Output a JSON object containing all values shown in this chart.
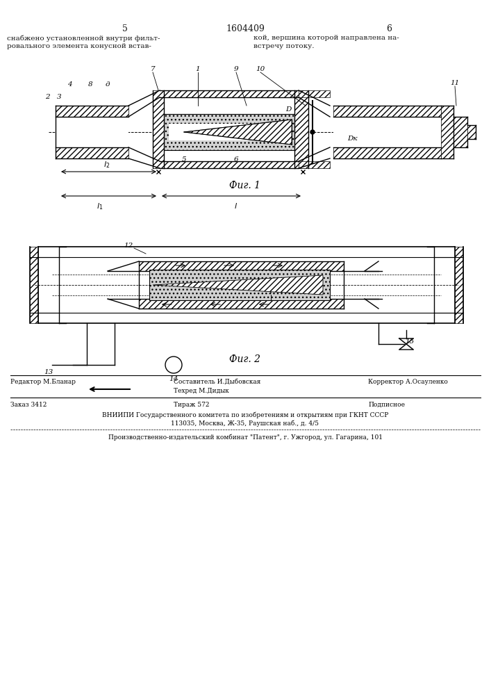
{
  "page_number_left": "5",
  "patent_number": "1604409",
  "page_number_right": "6",
  "header_text_left": "снабжено установленной внутри фильт-\nровального элемента конусной встав-",
  "header_text_right": "кой, вершина которой направлена на-\nвстречу потоку.",
  "fig1_caption": "Фиг. 1",
  "fig2_caption": "Фиг. 2",
  "footer_editor": "Редактор М.Бланар",
  "footer_compiler": "Составитель И.Дыбовская",
  "footer_corrector": "Корректор А.Осауленко",
  "footer_techred": "Техред М.Дидык",
  "footer_order": "Заказ 3412",
  "footer_circulation": "Тираж 572",
  "footer_subscription": "Подписное",
  "footer_vniiipi": "ВНИИПИ Государственного комитета по изобретениям и открытиям при ГКНТ СССР",
  "footer_address": "113035, Москва, Ж-35, Раушская наб., д. 4/5",
  "footer_production": "Производственно-издательский комбинат \"Патент\", г. Ужгород, ул. Гагарина, 101",
  "bg_color": "#ffffff",
  "line_color": "#000000",
  "hatch_color": "#000000",
  "text_color": "#1a1a1a"
}
